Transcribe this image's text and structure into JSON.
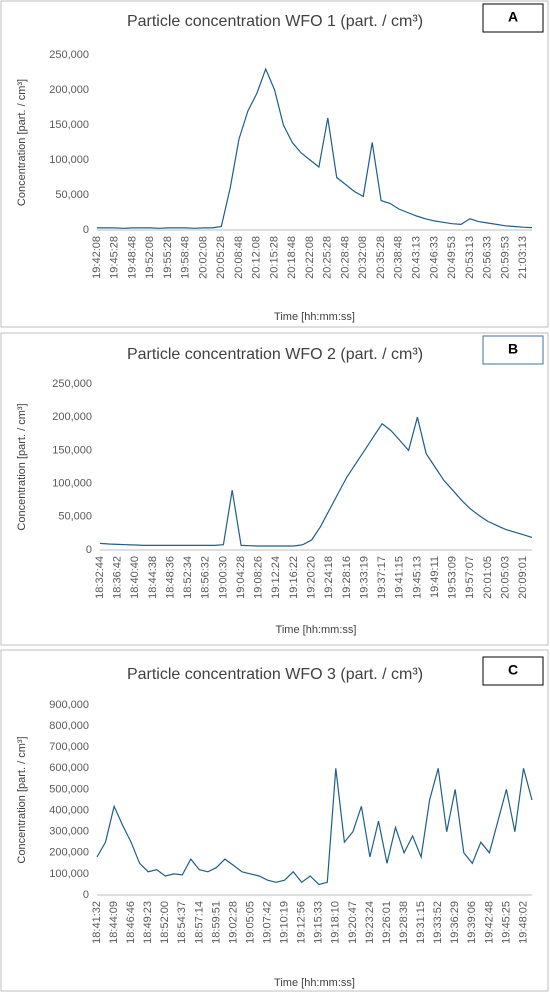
{
  "chart_data": [
    {
      "type": "line",
      "title": "Particle concentration WFO 1 (part. / cm³)",
      "panel_label": "A",
      "y_label": "Concentration [part. / cm³]",
      "x_label": "Time [hh:mm:ss]",
      "color": "#1f5f87",
      "grid": false,
      "ylim": [
        0,
        250000
      ],
      "yticks": [
        0,
        {
          "value": 50000,
          "label": "50,000"
        },
        {
          "value": 100000,
          "label": "100,000"
        },
        {
          "value": 150000,
          "label": "150,000"
        },
        {
          "value": 200000,
          "label": "200,000"
        },
        {
          "value": 250000,
          "label": "250,000"
        }
      ],
      "categories": [
        "19:42:08",
        null,
        "19:45:28",
        null,
        "19:48:48",
        null,
        "19:52:08",
        null,
        "19:55:28",
        null,
        "19:58:48",
        null,
        "20:02:08",
        null,
        "20:05:28",
        null,
        "20:08:48",
        null,
        "20:12:08",
        null,
        "20:15:28",
        null,
        "20:18:48",
        null,
        "20:22:08",
        null,
        "20:25:28",
        null,
        "20:28:48",
        null,
        "20:32:08",
        null,
        "20:35:28",
        null,
        "20:38:48",
        null,
        "20:43:13",
        null,
        "20:46:33",
        null,
        "20:49:53",
        null,
        "20:53:13",
        null,
        "20:56:33",
        null,
        "20:59:53",
        null,
        "21:03:13",
        null
      ],
      "values": [
        3000,
        3000,
        3000,
        2500,
        3000,
        3000,
        3000,
        2500,
        3000,
        3000,
        3000,
        2500,
        3000,
        3000,
        5000,
        60000,
        130000,
        170000,
        195000,
        230000,
        200000,
        150000,
        125000,
        110000,
        100000,
        90000,
        160000,
        75000,
        65000,
        55000,
        48000,
        125000,
        42000,
        38000,
        30000,
        25000,
        20000,
        16000,
        13000,
        11000,
        9000,
        8000,
        16000,
        12000,
        10000,
        8000,
        6000,
        5000,
        4000,
        3500
      ]
    },
    {
      "type": "line",
      "title": "Particle concentration WFO 2 (part. / cm³)",
      "panel_label": "B",
      "y_label": "Concentration [part. / cm³]",
      "x_label": "Time [hh:mm:ss]",
      "color": "#1f5f87",
      "grid": false,
      "ylim": [
        0,
        250000
      ],
      "yticks": [
        0,
        {
          "value": 50000,
          "label": "50,000"
        },
        {
          "value": 100000,
          "label": "100,000"
        },
        {
          "value": 150000,
          "label": "150,000"
        },
        {
          "value": 200000,
          "label": "200,000"
        },
        {
          "value": 250000,
          "label": "250,000"
        }
      ],
      "categories": [
        "18:32:44",
        null,
        "18:36:42",
        null,
        "18:40:40",
        null,
        "18:44:38",
        null,
        "18:48:36",
        null,
        "18:52:34",
        null,
        "18:56:32",
        null,
        "19:00:30",
        null,
        "19:04:28",
        null,
        "19:08:26",
        null,
        "19:12:24",
        null,
        "19:16:22",
        null,
        "19:20:20",
        null,
        "19:24:18",
        null,
        "19:28:16",
        null,
        "19:33:19",
        null,
        "19:37:17",
        null,
        "19:41:15",
        null,
        "19:45:13",
        null,
        "19:49:11",
        null,
        "19:53:09",
        null,
        "19:57:07",
        null,
        "20:01:05",
        null,
        "20:05:03",
        null,
        "20:09:01",
        null
      ],
      "values": [
        10000,
        9000,
        8500,
        8000,
        7500,
        7000,
        7000,
        7000,
        7000,
        7000,
        7000,
        7000,
        7000,
        7000,
        8000,
        90000,
        7000,
        6500,
        6000,
        6000,
        6000,
        6000,
        6000,
        8000,
        15000,
        35000,
        60000,
        85000,
        110000,
        130000,
        150000,
        170000,
        190000,
        180000,
        165000,
        150000,
        200000,
        145000,
        125000,
        105000,
        90000,
        75000,
        62000,
        52000,
        43000,
        37000,
        31000,
        27000,
        23000,
        19000
      ]
    },
    {
      "type": "line",
      "title": "Particle concentration WFO 3 (part. / cm³)",
      "panel_label": "C",
      "y_label": "Concentration [part. / cm³]",
      "x_label": "Time [hh:mm:ss]",
      "color": "#1f5f87",
      "grid": false,
      "ylim": [
        0,
        900000
      ],
      "yticks": [
        0,
        {
          "value": 100000,
          "label": "100,000"
        },
        {
          "value": 200000,
          "label": "200,000"
        },
        {
          "value": 300000,
          "label": "300,000"
        },
        {
          "value": 400000,
          "label": "400,000"
        },
        {
          "value": 500000,
          "label": "500,000"
        },
        {
          "value": 600000,
          "label": "600,000"
        },
        {
          "value": 700000,
          "label": "700,000"
        },
        {
          "value": 800000,
          "label": "800,000"
        },
        {
          "value": 900000,
          "label": "900,000"
        }
      ],
      "categories": [
        "18:41:32",
        null,
        "18:44:09",
        null,
        "18:46:46",
        null,
        "18:49:23",
        null,
        "18:52:00",
        null,
        "18:54:37",
        null,
        "18:57:14",
        null,
        "18:59:51",
        null,
        "19:02:28",
        null,
        "19:05:05",
        null,
        "19:07:42",
        null,
        "19:10:19",
        null,
        "19:12:56",
        null,
        "19:15:33",
        null,
        "19:18:10",
        null,
        "19:20:47",
        null,
        "19:23:24",
        null,
        "19:26:01",
        null,
        "19:28:38",
        null,
        "19:31:15",
        null,
        "19:33:52",
        null,
        "19:36:29",
        null,
        "19:39:06",
        null,
        "19:42:48",
        null,
        "19:45:25",
        null,
        "19:48:02",
        null
      ],
      "values": [
        180000,
        250000,
        420000,
        330000,
        250000,
        150000,
        110000,
        120000,
        90000,
        100000,
        95000,
        170000,
        120000,
        110000,
        130000,
        170000,
        140000,
        110000,
        100000,
        90000,
        70000,
        60000,
        70000,
        110000,
        60000,
        90000,
        50000,
        60000,
        600000,
        250000,
        300000,
        420000,
        180000,
        350000,
        150000,
        320000,
        200000,
        280000,
        180000,
        450000,
        600000,
        300000,
        500000,
        200000,
        150000,
        250000,
        200000,
        350000,
        500000,
        300000,
        600000,
        450000
      ]
    }
  ]
}
